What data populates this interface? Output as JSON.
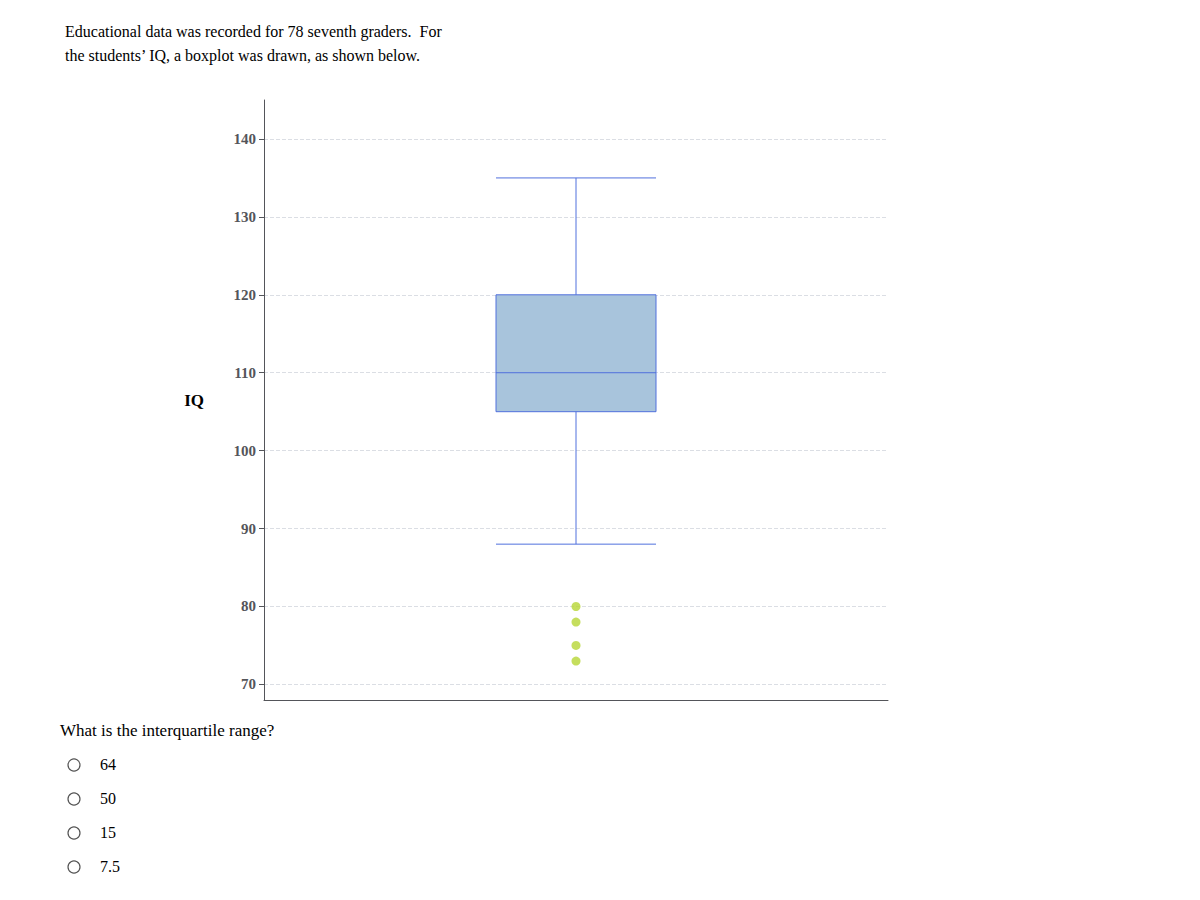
{
  "chart_data": {
    "type": "boxplot",
    "title": "Educational data was recorded for 78 seventh graders.  For",
    "subtitle": "the students’ IQ, a boxplot was drawn, as shown below.",
    "ylabel": "IQ",
    "whisker_low": 88,
    "q1": 105,
    "median": 110,
    "q3": 120,
    "whisker_high": 135,
    "outliers": [
      80,
      78,
      75,
      73
    ],
    "color": "#a8c4dc",
    "ylim": [
      68,
      145
    ],
    "yticks": [
      70,
      80,
      90,
      100,
      110,
      120,
      130,
      140
    ],
    "grid": true,
    "tick_labels": "y",
    "annotations": [
      "What is the interquartile range?",
      "64",
      "50",
      "15",
      "7.5"
    ]
  }
}
